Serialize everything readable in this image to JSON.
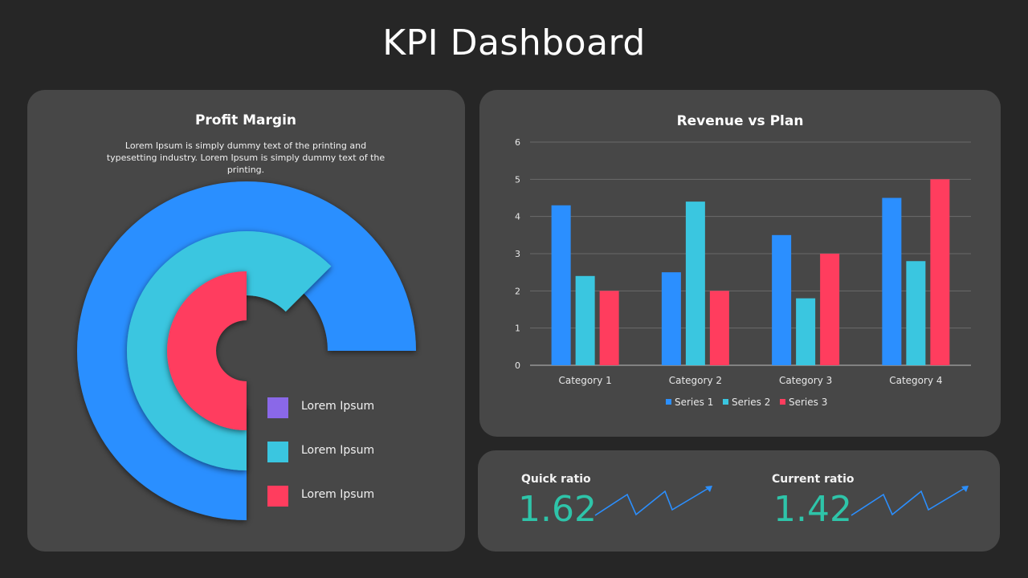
{
  "page": {
    "title": "KPI Dashboard"
  },
  "profit_margin": {
    "title": "Profit Margin",
    "description": "Lorem Ipsum is simply dummy text of the printing and typesetting industry. Lorem Ipsum is simply dummy text of the printing.",
    "legend": [
      {
        "label": "Lorem Ipsum",
        "color": "#8a68e8"
      },
      {
        "label": "Lorem Ipsum",
        "color": "#3ac6e0"
      },
      {
        "label": "Lorem Ipsum",
        "color": "#ff3d5e"
      }
    ],
    "rings": [
      {
        "name": "outer",
        "color": "#2b8fff"
      },
      {
        "name": "middle",
        "color": "#3ac6e0"
      },
      {
        "name": "inner",
        "color": "#ff3d5e"
      }
    ]
  },
  "chart_data": {
    "type": "bar",
    "title": "Revenue vs Plan",
    "categories": [
      "Category 1",
      "Category 2",
      "Category 3",
      "Category 4"
    ],
    "series": [
      {
        "name": "Series 1",
        "values": [
          4.3,
          2.5,
          3.5,
          4.5
        ],
        "color": "#2b8fff"
      },
      {
        "name": "Series 2",
        "values": [
          2.4,
          4.4,
          1.8,
          2.8
        ],
        "color": "#3ac6e0"
      },
      {
        "name": "Series 3",
        "values": [
          2,
          2,
          3,
          5
        ],
        "color": "#ff3d5e"
      }
    ],
    "ylim": [
      0,
      6
    ],
    "yticks": [
      0,
      1,
      2,
      3,
      4,
      5,
      6
    ],
    "grid": true,
    "legend_position": "bottom"
  },
  "ratios": {
    "quick": {
      "label": "Quick ratio",
      "value": "1.62"
    },
    "current": {
      "label": "Current ratio",
      "value": "1.42"
    },
    "trend_icon": "trend-up-arrow-icon",
    "value_color": "#2ec4a9",
    "trend_color": "#2b8fff"
  }
}
